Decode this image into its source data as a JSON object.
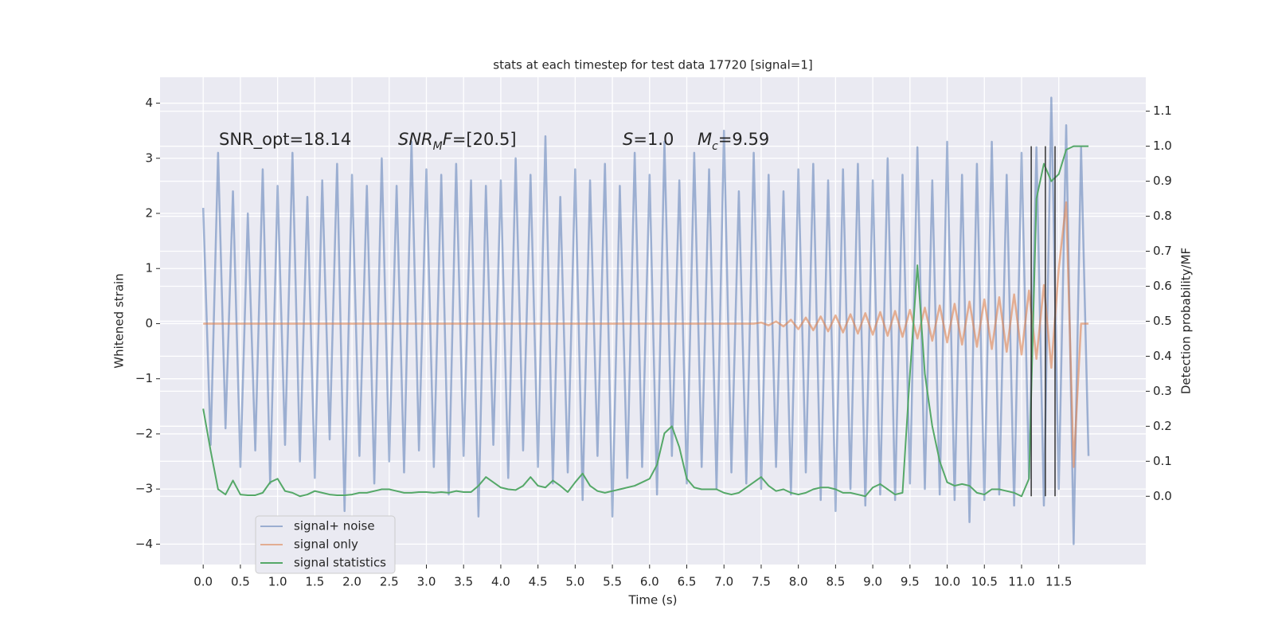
{
  "chart_data": {
    "type": "line",
    "title": "stats at each timestep for test data 17720 [signal=1]",
    "x_label": "Time (s)",
    "y_label": "Whitened strain",
    "y2_label": "Detection probability/MF",
    "xlim": [
      -0.58,
      12.67
    ],
    "ylim": [
      -4.37,
      4.47
    ],
    "y2lim": [
      -0.195,
      1.197
    ],
    "grid": true,
    "legend": "lower left",
    "xticks": [
      {
        "value": 0,
        "label": "0.0"
      },
      {
        "value": 0.5,
        "label": "0.5"
      },
      {
        "value": 1,
        "label": "1.0"
      },
      {
        "value": 1.5,
        "label": "1.5"
      },
      {
        "value": 2,
        "label": "2.0"
      },
      {
        "value": 2.5,
        "label": "2.5"
      },
      {
        "value": 3,
        "label": "3.0"
      },
      {
        "value": 3.5,
        "label": "3.5"
      },
      {
        "value": 4,
        "label": "4.0"
      },
      {
        "value": 4.5,
        "label": "4.5"
      },
      {
        "value": 5,
        "label": "5.0"
      },
      {
        "value": 5.5,
        "label": "5.5"
      },
      {
        "value": 6,
        "label": "6.0"
      },
      {
        "value": 6.5,
        "label": "6.5"
      },
      {
        "value": 7,
        "label": "7.0"
      },
      {
        "value": 7.5,
        "label": "7.5"
      },
      {
        "value": 8,
        "label": "8.0"
      },
      {
        "value": 8.5,
        "label": "8.5"
      },
      {
        "value": 9,
        "label": "9.0"
      },
      {
        "value": 9.5,
        "label": "9.5"
      },
      {
        "value": 10,
        "label": "10.0"
      },
      {
        "value": 10.5,
        "label": "10.5"
      },
      {
        "value": 11,
        "label": "11.0"
      },
      {
        "value": 11.5,
        "label": "11.5"
      }
    ],
    "yticks": [
      {
        "value": -4,
        "label": "−4"
      },
      {
        "value": -3,
        "label": "−3"
      },
      {
        "value": -2,
        "label": "−2"
      },
      {
        "value": -1,
        "label": "−1"
      },
      0,
      1,
      2,
      3,
      4
    ],
    "y2ticks": [
      {
        "value": 0,
        "label": "0.0"
      },
      {
        "value": 0.1,
        "label": "0.1"
      },
      {
        "value": 0.2,
        "label": "0.2"
      },
      {
        "value": 0.3,
        "label": "0.3"
      },
      {
        "value": 0.4,
        "label": "0.4"
      },
      {
        "value": 0.5,
        "label": "0.5"
      },
      {
        "value": 0.6,
        "label": "0.6"
      },
      {
        "value": 0.7,
        "label": "0.7"
      },
      {
        "value": 0.8,
        "label": "0.8"
      },
      {
        "value": 0.9,
        "label": "0.9"
      },
      {
        "value": 1,
        "label": "1.0"
      },
      {
        "value": 1.1,
        "label": "1.1"
      }
    ],
    "x": [
      0,
      0.1,
      0.2,
      0.3,
      0.4,
      0.5,
      0.6,
      0.7,
      0.8,
      0.9,
      1,
      1.1,
      1.2,
      1.3,
      1.4,
      1.5,
      1.6,
      1.7,
      1.8,
      1.9,
      2,
      2.1,
      2.2,
      2.3,
      2.4,
      2.5,
      2.6,
      2.7,
      2.8,
      2.9,
      3,
      3.1,
      3.2,
      3.3,
      3.4,
      3.5,
      3.6,
      3.7,
      3.8,
      3.9,
      4,
      4.1,
      4.2,
      4.3,
      4.4,
      4.5,
      4.6,
      4.7,
      4.8,
      4.9,
      5,
      5.1,
      5.2,
      5.3,
      5.4,
      5.5,
      5.6,
      5.7,
      5.8,
      5.9,
      6,
      6.1,
      6.2,
      6.3,
      6.4,
      6.5,
      6.6,
      6.7,
      6.8,
      6.9,
      7,
      7.1,
      7.2,
      7.3,
      7.4,
      7.5,
      7.6,
      7.7,
      7.8,
      7.9,
      8,
      8.1,
      8.2,
      8.3,
      8.4,
      8.5,
      8.6,
      8.7,
      8.8,
      8.9,
      9,
      9.1,
      9.2,
      9.3,
      9.4,
      9.5,
      9.6,
      9.7,
      9.8,
      9.9,
      10,
      10.1,
      10.2,
      10.3,
      10.4,
      10.5,
      10.6,
      10.7,
      10.8,
      10.9,
      11,
      11.1,
      11.2,
      11.3,
      11.4,
      11.5,
      11.6,
      11.7,
      11.8,
      11.9
    ],
    "series": [
      {
        "name": "signal+ noise",
        "color": "#4c72b0",
        "opacity": 0.5,
        "width": 2.5,
        "values": [
          2.1,
          -2.2,
          3.1,
          -1.9,
          2.4,
          -2.6,
          2.0,
          -2.3,
          2.8,
          -2.9,
          2.5,
          -2.2,
          3.1,
          -2.5,
          2.3,
          -2.8,
          2.6,
          -2.1,
          2.9,
          -3.4,
          2.7,
          -2.4,
          2.5,
          -2.9,
          3.0,
          -2.5,
          2.5,
          -2.7,
          3.3,
          -2.3,
          2.8,
          -2.6,
          2.7,
          -3.1,
          2.9,
          -2.4,
          2.6,
          -3.5,
          2.5,
          -2.2,
          2.6,
          -2.8,
          3.0,
          -2.3,
          2.7,
          -2.6,
          3.4,
          -2.9,
          2.3,
          -2.7,
          2.8,
          -3.2,
          2.6,
          -2.4,
          2.9,
          -3.5,
          2.5,
          -2.8,
          3.1,
          -2.6,
          2.7,
          -3.1,
          3.3,
          -2.4,
          2.6,
          -2.9,
          3.1,
          -2.6,
          2.8,
          -3.0,
          3.5,
          -2.7,
          2.4,
          -2.9,
          3.1,
          -3.0,
          2.7,
          -2.6,
          2.4,
          -3.1,
          2.8,
          -2.7,
          2.9,
          -3.2,
          2.6,
          -3.4,
          2.8,
          -3.0,
          2.9,
          -3.3,
          2.6,
          -3.1,
          3.0,
          -3.2,
          2.7,
          -2.9,
          3.2,
          -3.0,
          2.6,
          -3.1,
          3.3,
          -3.2,
          2.7,
          -3.6,
          2.9,
          -3.2,
          3.3,
          -3.1,
          2.7,
          -3.3,
          3.1,
          -2.8,
          3.2,
          -3.3,
          4.1,
          -3.0,
          3.6,
          -4.0,
          3.2,
          -2.4
        ]
      },
      {
        "name": "signal only",
        "color": "#dd8452",
        "opacity": 0.6,
        "width": 2.5,
        "values": [
          0,
          0,
          0,
          0,
          0,
          0,
          0,
          0,
          0,
          0,
          0,
          0,
          0,
          0,
          0,
          0,
          0,
          0,
          0,
          0,
          0,
          0,
          0,
          0,
          0,
          0,
          0,
          0,
          0,
          0,
          0,
          0,
          0,
          0,
          0,
          0,
          0,
          0,
          0,
          0,
          0,
          0,
          0,
          0,
          0,
          0,
          0,
          0,
          0,
          0,
          0,
          0,
          0,
          0,
          0,
          0,
          0,
          0,
          0,
          0,
          0,
          0,
          0,
          0,
          0,
          0,
          0,
          0,
          0,
          0,
          0,
          0,
          0,
          0,
          0,
          0.02,
          -0.03,
          0.04,
          -0.05,
          0.07,
          -0.1,
          0.11,
          -0.12,
          0.13,
          -0.14,
          0.15,
          -0.16,
          0.17,
          -0.18,
          0.19,
          -0.2,
          0.21,
          -0.22,
          0.23,
          -0.24,
          0.25,
          -0.27,
          0.29,
          -0.31,
          0.33,
          -0.34,
          0.36,
          -0.38,
          0.4,
          -0.42,
          0.44,
          -0.46,
          0.48,
          -0.51,
          0.53,
          -0.56,
          0.6,
          -0.64,
          0.7,
          -0.8,
          1.0,
          2.2,
          -2.6,
          0,
          0
        ]
      },
      {
        "name": "signal statistics",
        "color": "#55a868",
        "opacity": 1,
        "width": 2,
        "axis": "y2",
        "values": [
          0.25,
          0.13,
          0.02,
          0.005,
          0.045,
          0.005,
          0.003,
          0.003,
          0.01,
          0.04,
          0.05,
          0.015,
          0.01,
          0,
          0.005,
          0.015,
          0.01,
          0.005,
          0.003,
          0.003,
          0.005,
          0.01,
          0.01,
          0.015,
          0.02,
          0.02,
          0.015,
          0.01,
          0.01,
          0.012,
          0.012,
          0.01,
          0.012,
          0.01,
          0.015,
          0.012,
          0.012,
          0.03,
          0.055,
          0.04,
          0.025,
          0.02,
          0.018,
          0.03,
          0.055,
          0.03,
          0.025,
          0.045,
          0.03,
          0.012,
          0.04,
          0.065,
          0.03,
          0.015,
          0.01,
          0.015,
          0.02,
          0.025,
          0.03,
          0.04,
          0.05,
          0.09,
          0.18,
          0.2,
          0.14,
          0.05,
          0.025,
          0.02,
          0.02,
          0.02,
          0.01,
          0.005,
          0.01,
          0.025,
          0.04,
          0.055,
          0.03,
          0.015,
          0.02,
          0.01,
          0.005,
          0.01,
          0.02,
          0.025,
          0.025,
          0.02,
          0.01,
          0.01,
          0.005,
          0,
          0.025,
          0.035,
          0.02,
          0.005,
          0.01,
          0.35,
          0.66,
          0.35,
          0.2,
          0.1,
          0.04,
          0.03,
          0.035,
          0.03,
          0.01,
          0.005,
          0.02,
          0.02,
          0.015,
          0.01,
          0,
          0.05,
          0.85,
          0.95,
          0.9,
          0.92,
          0.99,
          1,
          1,
          1
        ]
      }
    ],
    "vlines": {
      "x": [
        11.13,
        11.32,
        11.45
      ],
      "y2": [
        0,
        1
      ],
      "color": "#333333"
    },
    "annotations": [
      {
        "parts": [
          {
            "text": "SNR_opt=18.14"
          }
        ]
      },
      {
        "parts": [
          {
            "text": "SNR",
            "italic": true
          },
          {
            "text": "M",
            "italic": true,
            "sub": true
          },
          {
            "text": "F",
            "italic": true
          },
          {
            "text": "=[20.5]"
          }
        ]
      },
      {
        "parts": [
          {
            "text": "S",
            "italic": true
          },
          {
            "text": "=1.0"
          }
        ]
      },
      {
        "parts": [
          {
            "text": "M",
            "italic": true
          },
          {
            "text": "c",
            "italic": true,
            "sub": true
          },
          {
            "text": "=9.59"
          }
        ]
      }
    ]
  }
}
